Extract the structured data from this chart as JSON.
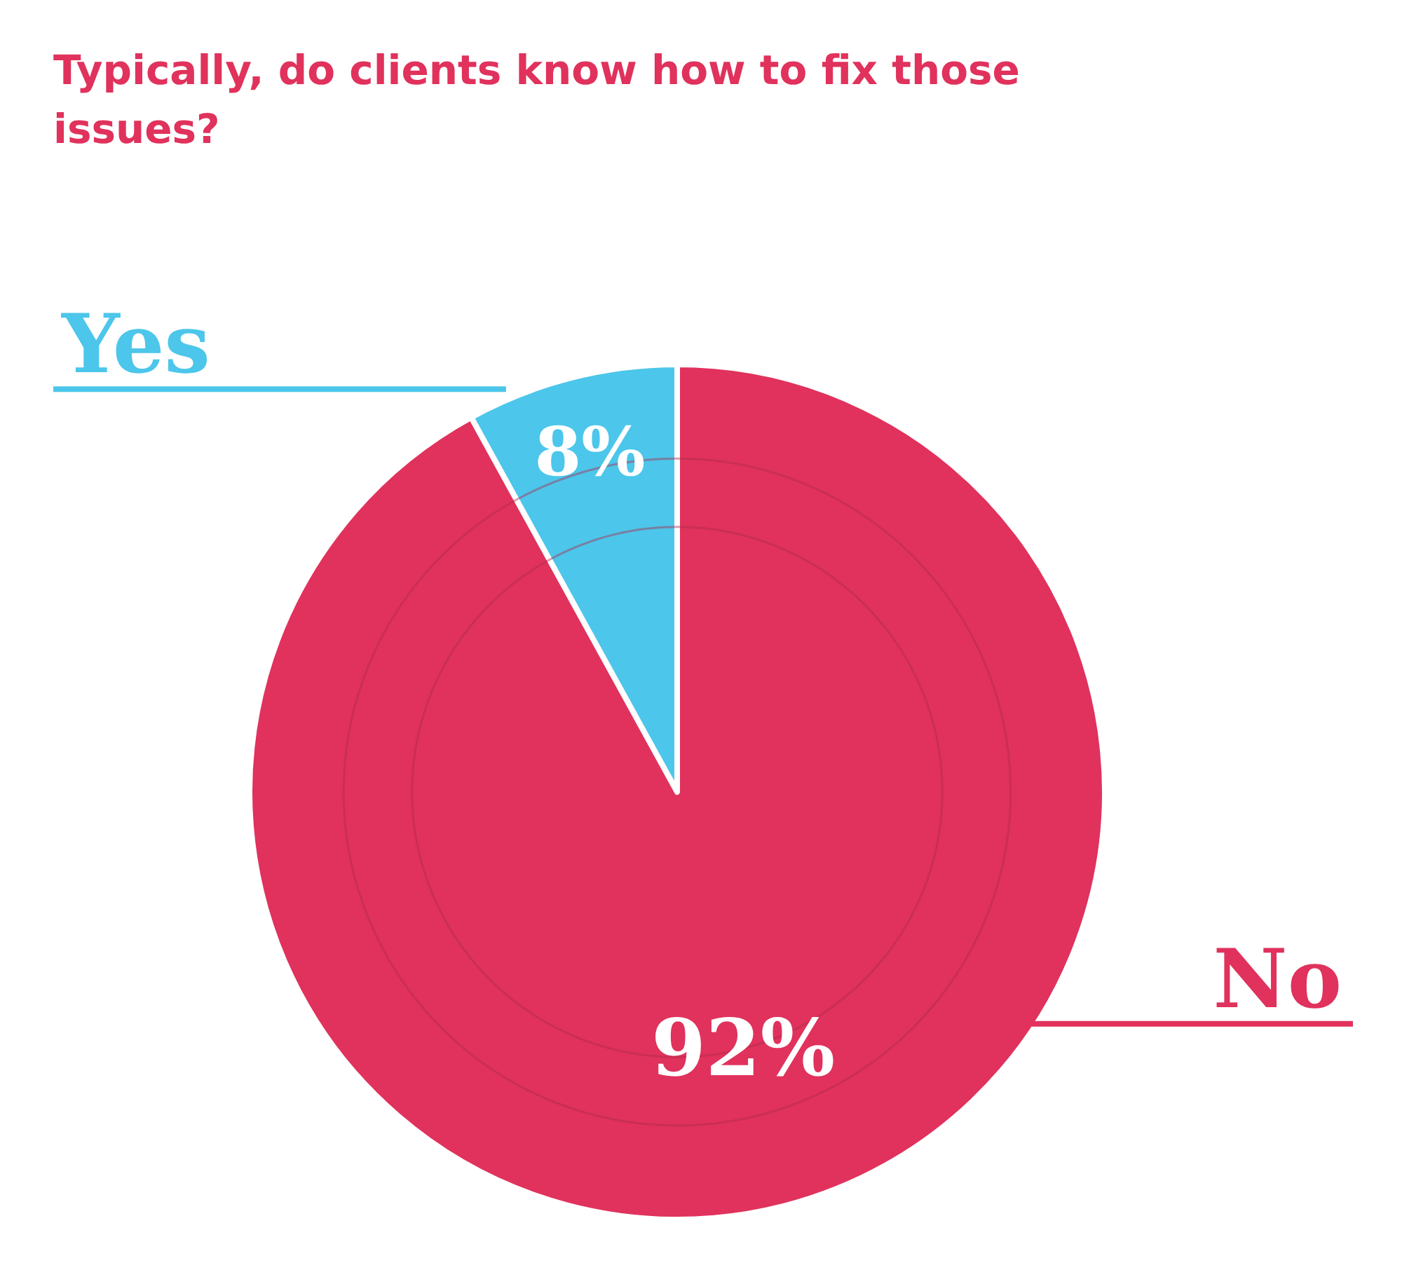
{
  "chart_data": {
    "type": "pie",
    "title": "Typically, do clients know how to fix those issues?",
    "categories": [
      "Yes",
      "No"
    ],
    "values": [
      8,
      92
    ],
    "colors": [
      "#4cc6ea",
      "#e0325c"
    ],
    "value_labels": [
      "8%",
      "92%"
    ]
  }
}
